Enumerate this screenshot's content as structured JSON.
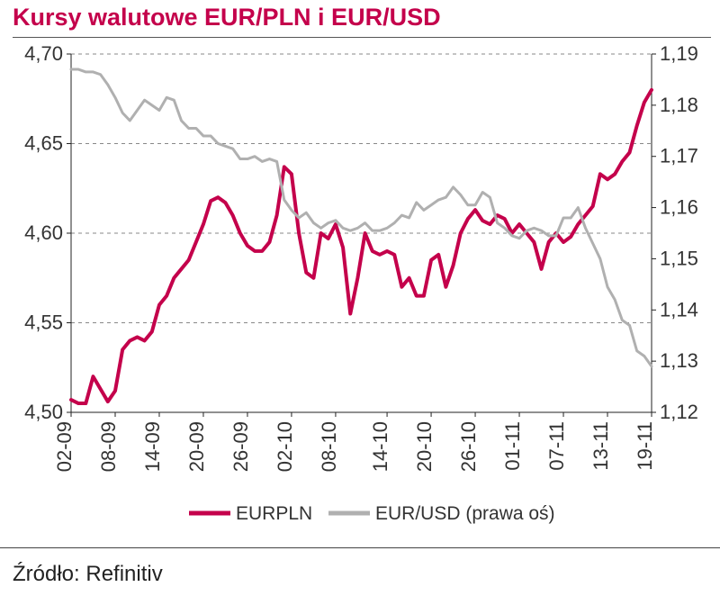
{
  "title": "Kursy walutowe EUR/PLN i EUR/USD",
  "source_label": "Źródło:",
  "source_value": "Refinitiv",
  "chart": {
    "type": "line",
    "background_color": "#ffffff",
    "grid_color": "#888888",
    "grid_dash": "4,4",
    "axis_color": "#222222",
    "tick_fontsize": 22,
    "legend_fontsize": 21,
    "legend_position": "bottom-center",
    "left_axis": {
      "ylim": [
        4.5,
        4.7
      ],
      "ticks": [
        4.5,
        4.55,
        4.6,
        4.65,
        4.7
      ],
      "tick_labels": [
        "4,50",
        "4,55",
        "4,60",
        "4,65",
        "4,70"
      ]
    },
    "right_axis": {
      "ylim": [
        1.12,
        1.19
      ],
      "ticks": [
        1.12,
        1.13,
        1.14,
        1.15,
        1.16,
        1.17,
        1.18,
        1.19
      ],
      "tick_labels": [
        "1,12",
        "1,13",
        "1,14",
        "1,15",
        "1,16",
        "1,17",
        "1,18",
        "1,19"
      ]
    },
    "x_labels": [
      "02-09",
      "08-09",
      "14-09",
      "20-09",
      "26-09",
      "02-10",
      "08-10",
      "14-10",
      "20-10",
      "26-10",
      "01-11",
      "07-11",
      "13-11",
      "19-11"
    ],
    "series": [
      {
        "name": "EURPLN",
        "axis": "left",
        "color": "#c4004b",
        "line_width": 4,
        "values": [
          4.507,
          4.505,
          4.505,
          4.52,
          4.513,
          4.506,
          4.512,
          4.535,
          4.54,
          4.542,
          4.54,
          4.545,
          4.56,
          4.565,
          4.575,
          4.58,
          4.585,
          4.595,
          4.605,
          4.618,
          4.62,
          4.617,
          4.61,
          4.6,
          4.593,
          4.59,
          4.59,
          4.595,
          4.61,
          4.637,
          4.633,
          4.6,
          4.578,
          4.575,
          4.6,
          4.597,
          4.605,
          4.592,
          4.555,
          4.575,
          4.6,
          4.59,
          4.588,
          4.59,
          4.588,
          4.57,
          4.575,
          4.565,
          4.565,
          4.585,
          4.588,
          4.57,
          4.582,
          4.6,
          4.608,
          4.613,
          4.607,
          4.605,
          4.61,
          4.608,
          4.6,
          4.605,
          4.6,
          4.595,
          4.58,
          4.595,
          4.6,
          4.595,
          4.598,
          4.605,
          4.61,
          4.615,
          4.633,
          4.63,
          4.633,
          4.64,
          4.645,
          4.66,
          4.673,
          4.68
        ]
      },
      {
        "name": "EUR/USD (prawa oś)",
        "axis": "right",
        "color": "#b0b0b0",
        "line_width": 3,
        "values": [
          1.187,
          1.187,
          1.1865,
          1.1865,
          1.186,
          1.184,
          1.1815,
          1.1785,
          1.177,
          1.179,
          1.181,
          1.18,
          1.179,
          1.1815,
          1.181,
          1.177,
          1.1755,
          1.1755,
          1.174,
          1.174,
          1.1725,
          1.172,
          1.1715,
          1.1695,
          1.1695,
          1.17,
          1.169,
          1.1695,
          1.169,
          1.1615,
          1.1595,
          1.158,
          1.159,
          1.157,
          1.156,
          1.157,
          1.1575,
          1.156,
          1.1555,
          1.156,
          1.157,
          1.1555,
          1.1555,
          1.156,
          1.157,
          1.1585,
          1.158,
          1.161,
          1.1595,
          1.1605,
          1.1615,
          1.162,
          1.164,
          1.1625,
          1.1605,
          1.1605,
          1.163,
          1.162,
          1.157,
          1.156,
          1.1545,
          1.154,
          1.1555,
          1.156,
          1.1555,
          1.1545,
          1.1545,
          1.158,
          1.158,
          1.16,
          1.156,
          1.153,
          1.15,
          1.1445,
          1.142,
          1.138,
          1.137,
          1.132,
          1.131,
          1.129
        ]
      }
    ]
  }
}
